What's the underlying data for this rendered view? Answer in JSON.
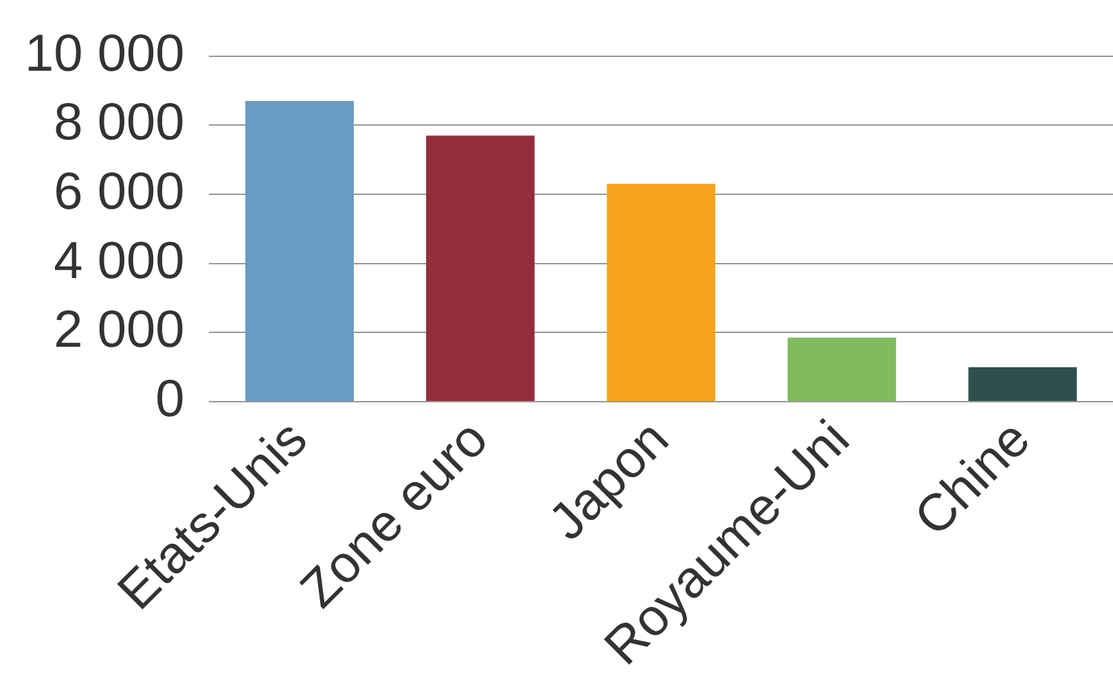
{
  "chart_data": {
    "type": "bar",
    "categories": [
      "Etats-Unis",
      "Zone euro",
      "Japon",
      "Royaume-Uni",
      "Chine"
    ],
    "values": [
      8700,
      7700,
      6300,
      1850,
      1000
    ],
    "colors": [
      "#6a9bc3",
      "#952d3c",
      "#f6a31c",
      "#80bb5d",
      "#2f4f4d"
    ],
    "ylim": [
      0,
      10000
    ],
    "yticks": [
      {
        "value": 0,
        "label": "0"
      },
      {
        "value": 2000,
        "label": "2 000"
      },
      {
        "value": 4000,
        "label": "4 000"
      },
      {
        "value": 6000,
        "label": "6 000"
      },
      {
        "value": 8000,
        "label": "8 000"
      },
      {
        "value": 10000,
        "label": "10 000"
      }
    ],
    "grid": "y"
  }
}
